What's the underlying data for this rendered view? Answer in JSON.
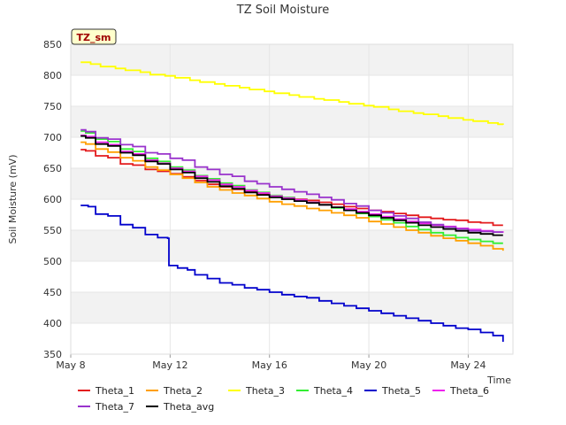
{
  "colors": {
    "band": "#f2f2f2",
    "grid": "#e6e6e6",
    "badge_fill": "#ffffcc",
    "badge_text": "#a00000"
  },
  "badge": {
    "label": "TZ_sm"
  },
  "chart_data": {
    "type": "line",
    "title": "TZ Soil Moisture",
    "xlabel": "Time",
    "ylabel": "Soil Moisture (mV)",
    "x_unit": "day of May",
    "xlim": [
      8,
      25.8
    ],
    "ylim": [
      350,
      850
    ],
    "yticks": [
      350,
      400,
      450,
      500,
      550,
      600,
      650,
      700,
      750,
      800,
      850
    ],
    "xticks": [
      {
        "value": 8,
        "label": "May 8"
      },
      {
        "value": 12,
        "label": "May 12"
      },
      {
        "value": 16,
        "label": "May 16"
      },
      {
        "value": 20,
        "label": "May 20"
      },
      {
        "value": 24,
        "label": "May 24"
      }
    ],
    "grid": true,
    "legend_position": "bottom",
    "series": [
      {
        "name": "Theta_1",
        "color": "#e31a1c",
        "points": [
          [
            8.4,
            680
          ],
          [
            8.6,
            678
          ],
          [
            9.0,
            670
          ],
          [
            9.5,
            667
          ],
          [
            10.0,
            657
          ],
          [
            10.5,
            655
          ],
          [
            11.0,
            648
          ],
          [
            11.5,
            645
          ],
          [
            12.0,
            641
          ],
          [
            12.5,
            636
          ],
          [
            13.0,
            630
          ],
          [
            13.5,
            624
          ],
          [
            14.0,
            620
          ],
          [
            14.5,
            616
          ],
          [
            15.0,
            612
          ],
          [
            15.5,
            609
          ],
          [
            16.0,
            605
          ],
          [
            16.5,
            603
          ],
          [
            17.0,
            600
          ],
          [
            17.5,
            598
          ],
          [
            18.0,
            595
          ],
          [
            18.5,
            592
          ],
          [
            19.0,
            588
          ],
          [
            19.5,
            585
          ],
          [
            20.0,
            582
          ],
          [
            20.5,
            580
          ],
          [
            21.0,
            577
          ],
          [
            21.5,
            574
          ],
          [
            22.0,
            571
          ],
          [
            22.5,
            569
          ],
          [
            23.0,
            567
          ],
          [
            23.5,
            566
          ],
          [
            24.0,
            563
          ],
          [
            24.5,
            562
          ],
          [
            25.0,
            558
          ],
          [
            25.4,
            558
          ]
        ]
      },
      {
        "name": "Theta_2",
        "color": "#ff9f00",
        "points": [
          [
            8.4,
            692
          ],
          [
            8.6,
            689
          ],
          [
            9.0,
            681
          ],
          [
            9.5,
            676
          ],
          [
            10.0,
            667
          ],
          [
            10.5,
            662
          ],
          [
            11.0,
            652
          ],
          [
            11.5,
            647
          ],
          [
            12.0,
            640
          ],
          [
            12.5,
            634
          ],
          [
            13.0,
            627
          ],
          [
            13.5,
            620
          ],
          [
            14.0,
            615
          ],
          [
            14.5,
            610
          ],
          [
            15.0,
            606
          ],
          [
            15.5,
            601
          ],
          [
            16.0,
            596
          ],
          [
            16.5,
            592
          ],
          [
            17.0,
            589
          ],
          [
            17.5,
            585
          ],
          [
            18.0,
            582
          ],
          [
            18.5,
            578
          ],
          [
            19.0,
            574
          ],
          [
            19.5,
            570
          ],
          [
            20.0,
            564
          ],
          [
            20.5,
            560
          ],
          [
            21.0,
            555
          ],
          [
            21.5,
            550
          ],
          [
            22.0,
            546
          ],
          [
            22.5,
            541
          ],
          [
            23.0,
            537
          ],
          [
            23.5,
            533
          ],
          [
            24.0,
            529
          ],
          [
            24.5,
            525
          ],
          [
            25.0,
            520
          ],
          [
            25.4,
            517
          ]
        ]
      },
      {
        "name": "Theta_3",
        "color": "#ffff00",
        "points": [
          [
            8.4,
            821
          ],
          [
            8.8,
            818
          ],
          [
            9.2,
            814
          ],
          [
            9.8,
            811
          ],
          [
            10.2,
            808
          ],
          [
            10.8,
            805
          ],
          [
            11.2,
            801
          ],
          [
            11.8,
            799
          ],
          [
            12.2,
            796
          ],
          [
            12.8,
            792
          ],
          [
            13.2,
            789
          ],
          [
            13.8,
            786
          ],
          [
            14.2,
            783
          ],
          [
            14.8,
            780
          ],
          [
            15.2,
            777
          ],
          [
            15.8,
            774
          ],
          [
            16.2,
            771
          ],
          [
            16.8,
            768
          ],
          [
            17.2,
            765
          ],
          [
            17.8,
            762
          ],
          [
            18.2,
            760
          ],
          [
            18.8,
            757
          ],
          [
            19.2,
            754
          ],
          [
            19.8,
            751
          ],
          [
            20.2,
            749
          ],
          [
            20.8,
            745
          ],
          [
            21.2,
            742
          ],
          [
            21.8,
            739
          ],
          [
            22.2,
            737
          ],
          [
            22.8,
            734
          ],
          [
            23.2,
            731
          ],
          [
            23.8,
            728
          ],
          [
            24.2,
            726
          ],
          [
            24.8,
            723
          ],
          [
            25.2,
            721
          ],
          [
            25.4,
            720
          ]
        ]
      },
      {
        "name": "Theta_4",
        "color": "#33ee33",
        "points": [
          [
            8.4,
            710
          ],
          [
            8.6,
            707
          ],
          [
            9.0,
            697
          ],
          [
            9.5,
            693
          ],
          [
            10.0,
            681
          ],
          [
            10.5,
            677
          ],
          [
            11.0,
            666
          ],
          [
            11.5,
            661
          ],
          [
            12.0,
            652
          ],
          [
            12.5,
            647
          ],
          [
            13.0,
            638
          ],
          [
            13.5,
            633
          ],
          [
            14.0,
            626
          ],
          [
            14.5,
            622
          ],
          [
            15.0,
            615
          ],
          [
            15.5,
            611
          ],
          [
            16.0,
            606
          ],
          [
            16.5,
            603
          ],
          [
            17.0,
            599
          ],
          [
            17.5,
            595
          ],
          [
            18.0,
            591
          ],
          [
            18.5,
            586
          ],
          [
            19.0,
            582
          ],
          [
            19.5,
            577
          ],
          [
            20.0,
            572
          ],
          [
            20.5,
            567
          ],
          [
            21.0,
            562
          ],
          [
            21.5,
            556
          ],
          [
            22.0,
            551
          ],
          [
            22.5,
            546
          ],
          [
            23.0,
            542
          ],
          [
            23.5,
            538
          ],
          [
            24.0,
            535
          ],
          [
            24.5,
            532
          ],
          [
            25.0,
            529
          ],
          [
            25.4,
            529
          ]
        ]
      },
      {
        "name": "Theta_5",
        "color": "#0000cc",
        "points": [
          [
            8.4,
            590
          ],
          [
            8.7,
            588
          ],
          [
            9.0,
            576
          ],
          [
            9.5,
            573
          ],
          [
            10.0,
            559
          ],
          [
            10.5,
            554
          ],
          [
            11.0,
            543
          ],
          [
            11.5,
            538
          ],
          [
            11.9,
            537
          ],
          [
            11.95,
            493
          ],
          [
            12.3,
            489
          ],
          [
            12.7,
            486
          ],
          [
            13.0,
            478
          ],
          [
            13.5,
            472
          ],
          [
            14.0,
            465
          ],
          [
            14.5,
            462
          ],
          [
            15.0,
            457
          ],
          [
            15.5,
            454
          ],
          [
            16.0,
            450
          ],
          [
            16.5,
            446
          ],
          [
            17.0,
            443
          ],
          [
            17.5,
            441
          ],
          [
            18.0,
            436
          ],
          [
            18.5,
            432
          ],
          [
            19.0,
            428
          ],
          [
            19.5,
            424
          ],
          [
            20.0,
            420
          ],
          [
            20.5,
            416
          ],
          [
            21.0,
            412
          ],
          [
            21.5,
            408
          ],
          [
            22.0,
            404
          ],
          [
            22.5,
            400
          ],
          [
            23.0,
            396
          ],
          [
            23.5,
            392
          ],
          [
            24.0,
            390
          ],
          [
            24.5,
            385
          ],
          [
            25.0,
            380
          ],
          [
            25.4,
            370
          ]
        ]
      },
      {
        "name": "Theta_6",
        "color": "#ee22ee",
        "points": [
          [
            8.4,
            703
          ],
          [
            8.6,
            701
          ],
          [
            9.0,
            692
          ],
          [
            9.5,
            688
          ],
          [
            10.0,
            677
          ],
          [
            10.5,
            673
          ],
          [
            11.0,
            663
          ],
          [
            11.5,
            658
          ],
          [
            12.0,
            650
          ],
          [
            12.5,
            645
          ],
          [
            13.0,
            637
          ],
          [
            13.5,
            631
          ],
          [
            14.0,
            624
          ],
          [
            14.5,
            620
          ],
          [
            15.0,
            614
          ],
          [
            15.5,
            610
          ],
          [
            16.0,
            605
          ],
          [
            16.5,
            602
          ],
          [
            17.0,
            599
          ],
          [
            17.5,
            595
          ],
          [
            18.0,
            591
          ],
          [
            18.5,
            587
          ],
          [
            19.0,
            584
          ],
          [
            19.5,
            580
          ],
          [
            20.0,
            576
          ],
          [
            20.5,
            572
          ],
          [
            21.0,
            568
          ],
          [
            21.5,
            564
          ],
          [
            22.0,
            561
          ],
          [
            22.5,
            558
          ],
          [
            23.0,
            556
          ],
          [
            23.5,
            553
          ],
          [
            24.0,
            551
          ],
          [
            24.5,
            549
          ],
          [
            25.0,
            547
          ],
          [
            25.4,
            546
          ]
        ]
      },
      {
        "name": "Theta_7",
        "color": "#9933cc",
        "points": [
          [
            8.4,
            712
          ],
          [
            8.6,
            709
          ],
          [
            9.0,
            699
          ],
          [
            9.5,
            697
          ],
          [
            10.0,
            688
          ],
          [
            10.5,
            685
          ],
          [
            11.0,
            675
          ],
          [
            11.5,
            673
          ],
          [
            12.0,
            666
          ],
          [
            12.5,
            663
          ],
          [
            13.0,
            652
          ],
          [
            13.5,
            648
          ],
          [
            14.0,
            640
          ],
          [
            14.5,
            637
          ],
          [
            15.0,
            629
          ],
          [
            15.5,
            625
          ],
          [
            16.0,
            620
          ],
          [
            16.5,
            616
          ],
          [
            17.0,
            612
          ],
          [
            17.5,
            608
          ],
          [
            18.0,
            603
          ],
          [
            18.5,
            599
          ],
          [
            19.0,
            593
          ],
          [
            19.5,
            589
          ],
          [
            20.0,
            582
          ],
          [
            20.5,
            578
          ],
          [
            21.0,
            573
          ],
          [
            21.5,
            569
          ],
          [
            22.0,
            563
          ],
          [
            22.5,
            559
          ],
          [
            23.0,
            555
          ],
          [
            23.5,
            552
          ],
          [
            24.0,
            549
          ],
          [
            24.5,
            548
          ],
          [
            25.0,
            547
          ],
          [
            25.4,
            547
          ]
        ]
      },
      {
        "name": "Theta_avg",
        "color": "#000000",
        "points": [
          [
            8.4,
            702
          ],
          [
            8.6,
            699
          ],
          [
            9.0,
            689
          ],
          [
            9.5,
            686
          ],
          [
            10.0,
            675
          ],
          [
            10.5,
            671
          ],
          [
            11.0,
            661
          ],
          [
            11.5,
            657
          ],
          [
            12.0,
            648
          ],
          [
            12.5,
            643
          ],
          [
            13.0,
            634
          ],
          [
            13.5,
            628
          ],
          [
            14.0,
            621
          ],
          [
            14.5,
            617
          ],
          [
            15.0,
            611
          ],
          [
            15.5,
            607
          ],
          [
            16.0,
            603
          ],
          [
            16.5,
            600
          ],
          [
            17.0,
            597
          ],
          [
            17.5,
            594
          ],
          [
            18.0,
            591
          ],
          [
            18.5,
            587
          ],
          [
            19.0,
            582
          ],
          [
            19.5,
            578
          ],
          [
            20.0,
            574
          ],
          [
            20.5,
            570
          ],
          [
            21.0,
            566
          ],
          [
            21.5,
            562
          ],
          [
            22.0,
            558
          ],
          [
            22.5,
            555
          ],
          [
            23.0,
            552
          ],
          [
            23.5,
            549
          ],
          [
            24.0,
            546
          ],
          [
            24.5,
            544
          ],
          [
            25.0,
            542
          ],
          [
            25.4,
            542
          ]
        ]
      }
    ]
  }
}
